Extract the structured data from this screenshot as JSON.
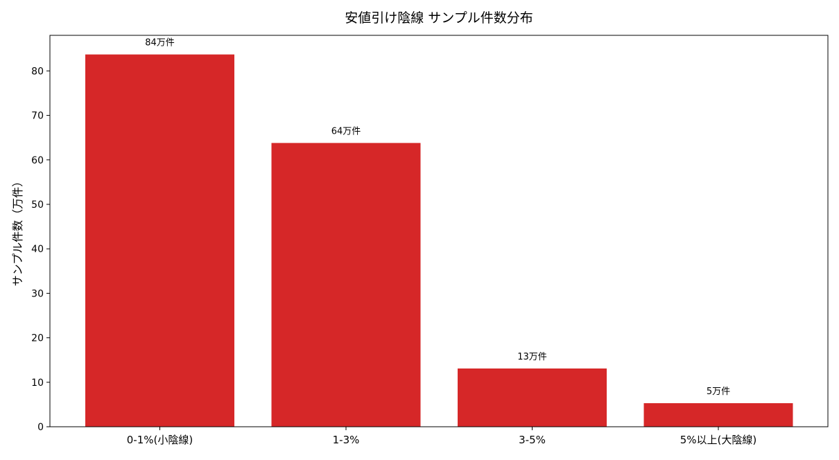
{
  "chart_data": {
    "type": "bar",
    "title": "安値引け陰線 サンプル件数分布",
    "xlabel": "",
    "ylabel": "サンプル件数（万件）",
    "categories": [
      "0-1%(小陰線)",
      "1-3%",
      "3-5%",
      "5%以上(大陰線)"
    ],
    "values": [
      83.7,
      63.8,
      13.1,
      5.3
    ],
    "data_labels": [
      "84万件",
      "64万件",
      "13万件",
      "5万件"
    ],
    "ylim": [
      0,
      88
    ],
    "yticks": [
      0,
      10,
      20,
      30,
      40,
      50,
      60,
      70,
      80
    ],
    "grid": false,
    "bar_color": "#d62728"
  }
}
